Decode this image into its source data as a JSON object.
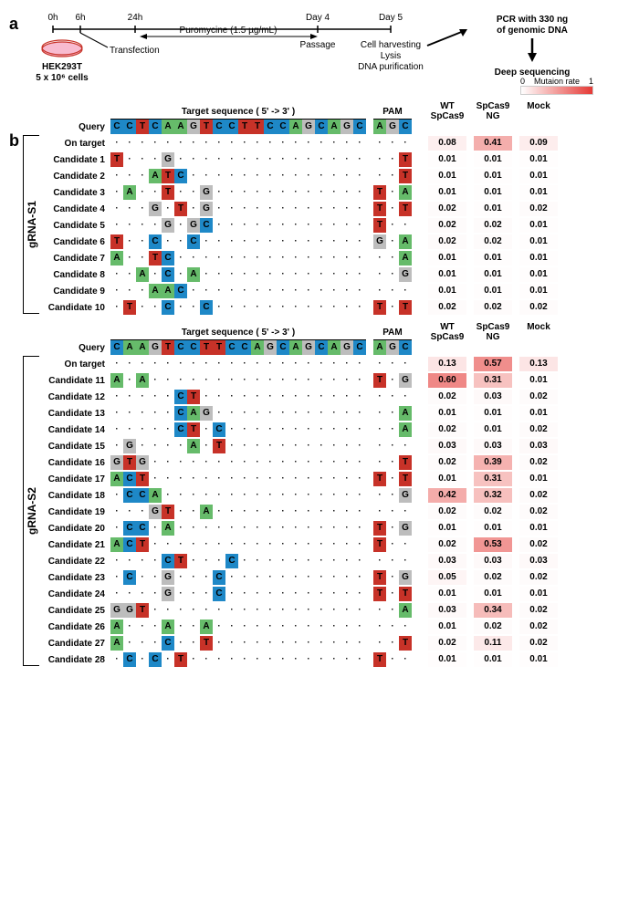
{
  "panelA": {
    "label": "a",
    "timeline": {
      "ticks": [
        "0h",
        "6h",
        "24h",
        "Day 4",
        "Day 5"
      ],
      "puromycine": "Puromycine (1.5 µg/mL)",
      "dishLabel1": "HEK293T",
      "dishLabel2": "5 x 10⁶ cells",
      "transfection": "Transfection",
      "passage": "Passage",
      "harvesting": [
        "Cell harvesting",
        "Lysis",
        "DNA purification"
      ],
      "pcr": [
        "PCR with 330 ng",
        "of genomic DNA"
      ],
      "deepSeq": "Deep sequencing"
    }
  },
  "panelB": {
    "label": "b",
    "legendTitle": "Mutaion rate",
    "legendMin": "0",
    "legendMax": "1",
    "columns": [
      "WT\nSpCas9",
      "SpCas9\nNG",
      "Mock"
    ],
    "groups": [
      {
        "name": "gRNA-S1",
        "targetTitle": "Target sequence  ( 5'  -> 3' )",
        "pamTitle": "PAM",
        "queryLabel": "Query",
        "query": {
          "seq": "CCTCAAGTCCTTCCAGCAGC",
          "pam": "AGC"
        },
        "rows": [
          {
            "name": "On target",
            "seq": "....................",
            "pam": "...",
            "vals": [
              0.08,
              0.41,
              0.09
            ]
          },
          {
            "name": "Candidate 1",
            "seq": "T...G...............",
            "pam": "..T",
            "vals": [
              0.01,
              0.01,
              0.01
            ]
          },
          {
            "name": "Candidate 2",
            "seq": "...ATC..............",
            "pam": "..T",
            "vals": [
              0.01,
              0.01,
              0.01
            ]
          },
          {
            "name": "Candidate 3",
            "seq": ".A..T..G............",
            "pam": "T.A",
            "vals": [
              0.01,
              0.01,
              0.01
            ]
          },
          {
            "name": "Candidate 4",
            "seq": "...G.T.G............",
            "pam": "T.T",
            "vals": [
              0.02,
              0.01,
              0.02
            ]
          },
          {
            "name": "Candidate 5",
            "seq": "....G.GC............",
            "pam": "T..",
            "vals": [
              0.02,
              0.02,
              0.01
            ]
          },
          {
            "name": "Candidate 6",
            "seq": "T..C..C.............",
            "pam": "G.A",
            "vals": [
              0.02,
              0.02,
              0.01
            ]
          },
          {
            "name": "Candidate 7",
            "seq": "A..TC...............",
            "pam": "..A",
            "vals": [
              0.01,
              0.01,
              0.01
            ]
          },
          {
            "name": "Candidate 8",
            "seq": "..A.C.A.............",
            "pam": "..G",
            "vals": [
              0.01,
              0.01,
              0.01
            ]
          },
          {
            "name": "Candidate 9",
            "seq": "...AAC..............",
            "pam": "...",
            "vals": [
              0.01,
              0.01,
              0.01
            ]
          },
          {
            "name": "Candidate 10",
            "seq": ".T..C..C............",
            "pam": "T.T",
            "vals": [
              0.02,
              0.02,
              0.02
            ]
          }
        ]
      },
      {
        "name": "gRNA-S2",
        "targetTitle": "Target sequence  ( 5'  -> 3' )",
        "pamTitle": "PAM",
        "queryLabel": "Query",
        "query": {
          "seq": "CAAGTCCTTCCAGCAGCAGC",
          "pam": "AGC"
        },
        "rows": [
          {
            "name": "On target",
            "seq": "....................",
            "pam": "...",
            "vals": [
              0.13,
              0.57,
              0.13
            ]
          },
          {
            "name": "Candidate 11",
            "seq": "A.A.................",
            "pam": "T.G",
            "vals": [
              0.6,
              0.31,
              0.01
            ]
          },
          {
            "name": "Candidate 12",
            "seq": ".....CT.............",
            "pam": "...",
            "vals": [
              0.02,
              0.03,
              0.02
            ]
          },
          {
            "name": "Candidate 13",
            "seq": ".....CAG............",
            "pam": "..A",
            "vals": [
              0.01,
              0.01,
              0.01
            ]
          },
          {
            "name": "Candidate 14",
            "seq": ".....CT.C...........",
            "pam": "..A",
            "vals": [
              0.02,
              0.01,
              0.02
            ]
          },
          {
            "name": "Candidate 15",
            "seq": ".G....A.T...........",
            "pam": "...",
            "vals": [
              0.03,
              0.03,
              0.03
            ]
          },
          {
            "name": "Candidate 16",
            "seq": "GTG.................",
            "pam": "..T",
            "vals": [
              0.02,
              0.39,
              0.02
            ]
          },
          {
            "name": "Candidate 17",
            "seq": "ACT.................",
            "pam": "T.T",
            "vals": [
              0.01,
              0.31,
              0.01
            ]
          },
          {
            "name": "Candidate 18",
            "seq": ".CCA................",
            "pam": "..G",
            "vals": [
              0.42,
              0.32,
              0.02
            ]
          },
          {
            "name": "Candidate 19",
            "seq": "...GT..A............",
            "pam": "...",
            "vals": [
              0.02,
              0.02,
              0.02
            ]
          },
          {
            "name": "Candidate 20",
            "seq": ".CC.A...............",
            "pam": "T.G",
            "vals": [
              0.01,
              0.01,
              0.01
            ]
          },
          {
            "name": "Candidate 21",
            "seq": "ACT.................",
            "pam": "T..",
            "vals": [
              0.02,
              0.53,
              0.02
            ]
          },
          {
            "name": "Candidate 22",
            "seq": "....CT...C..........",
            "pam": "...",
            "vals": [
              0.03,
              0.03,
              0.03
            ]
          },
          {
            "name": "Candidate 23",
            "seq": ".C..G...C...........",
            "pam": "T.G",
            "vals": [
              0.05,
              0.02,
              0.02
            ]
          },
          {
            "name": "Candidate 24",
            "seq": "....G...C...........",
            "pam": "T.T",
            "vals": [
              0.01,
              0.01,
              0.01
            ]
          },
          {
            "name": "Candidate 25",
            "seq": "GGT.................",
            "pam": "..A",
            "vals": [
              0.03,
              0.34,
              0.02
            ]
          },
          {
            "name": "Candidate 26",
            "seq": "A...A..A............",
            "pam": "...",
            "vals": [
              0.01,
              0.02,
              0.02
            ]
          },
          {
            "name": "Candidate 27",
            "seq": "A...C..T............",
            "pam": "..T",
            "vals": [
              0.02,
              0.11,
              0.02
            ]
          },
          {
            "name": "Candidate 28",
            "seq": ".C.C.T..............",
            "pam": "T..",
            "vals": [
              0.01,
              0.01,
              0.01
            ]
          }
        ]
      }
    ],
    "colors": {
      "A": "#66bb6a",
      "T": "#c73228",
      "C": "#1e88c7",
      "G": "#bdbdbd",
      "heatMin": "#ffffff",
      "heatMax": "#e53935"
    }
  }
}
